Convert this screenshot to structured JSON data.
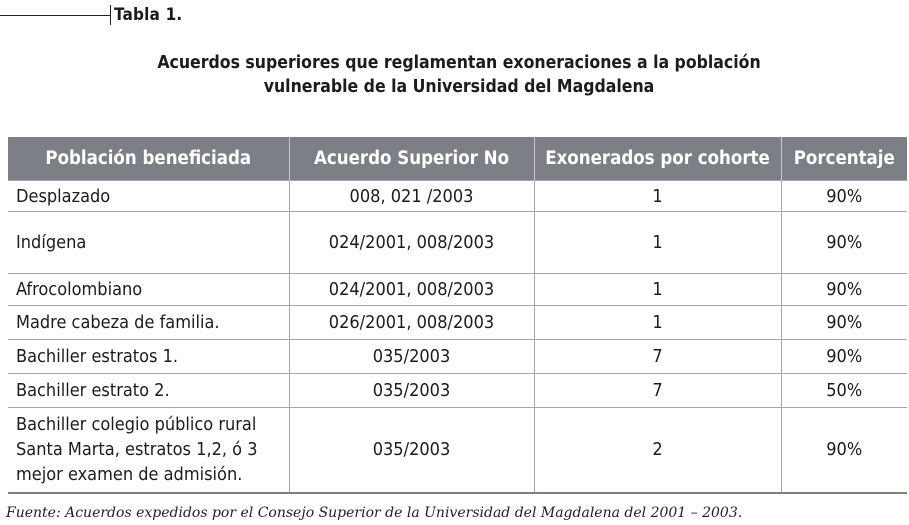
{
  "table_label": "Tabla 1.",
  "title_lines": [
    "Acuerdos superiores que reglamentan exoneraciones a la población",
    "vulnerable de la Universidad del Magdalena"
  ],
  "table": {
    "headers": [
      "Población beneficiada",
      "Acuerdo Superior No",
      "Exonerados por cohorte",
      "Porcentaje"
    ],
    "rows": [
      {
        "poblacion": [
          "Desplazado"
        ],
        "acuerdo": "008, 021 /2003",
        "exonerados": "1",
        "porcentaje": "90%"
      },
      {
        "poblacion": [
          "Indígena"
        ],
        "acuerdo": "024/2001, 008/2003",
        "exonerados": "1",
        "porcentaje": "90%"
      },
      {
        "poblacion": [
          "Afrocolombiano"
        ],
        "acuerdo": "024/2001, 008/2003",
        "exonerados": "1",
        "porcentaje": "90%"
      },
      {
        "poblacion": [
          "Madre cabeza de familia."
        ],
        "acuerdo": "026/2001, 008/2003",
        "exonerados": "1",
        "porcentaje": "90%"
      },
      {
        "poblacion": [
          "Bachiller estratos 1."
        ],
        "acuerdo": "035/2003",
        "exonerados": "7",
        "porcentaje": "90%"
      },
      {
        "poblacion": [
          "Bachiller estrato 2."
        ],
        "acuerdo": "035/2003",
        "exonerados": "7",
        "porcentaje": "50%"
      },
      {
        "poblacion": [
          "Bachiller colegio público rural",
          "Santa Marta, estratos 1,2, ó 3",
          "mejor examen de admisión."
        ],
        "acuerdo": "035/2003",
        "exonerados": "2",
        "porcentaje": "90%"
      }
    ]
  },
  "source_note": "Fuente: Acuerdos expedidos por el Consejo Superior de la Universidad del Magdalena del 2001 – 2003."
}
